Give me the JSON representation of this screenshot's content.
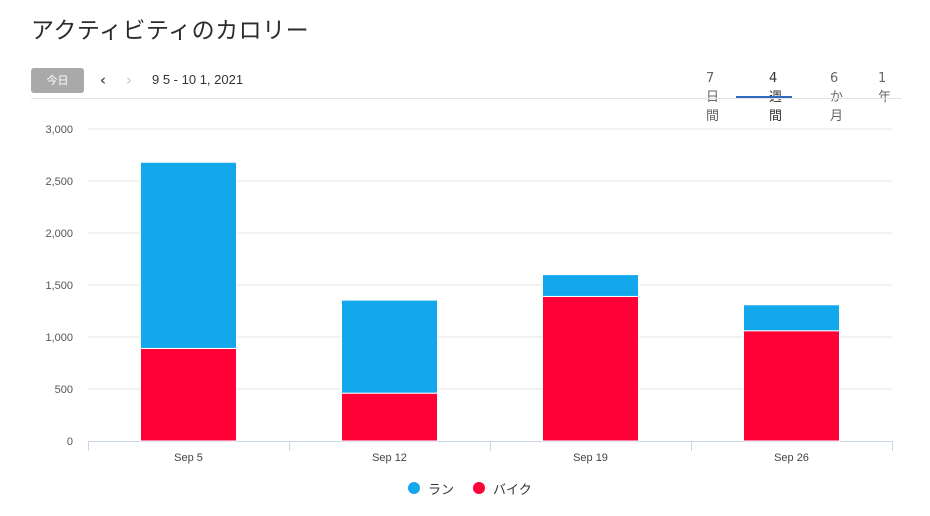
{
  "title": "アクティビティのカロリー",
  "toolbar": {
    "today_label": "今日",
    "prev_icon": "‹",
    "next_icon": "›",
    "date_range": "9 5 - 10 1, 2021",
    "tabs": [
      {
        "label": "7日間",
        "active": false
      },
      {
        "label": "4週間",
        "active": true
      },
      {
        "label": "6か月",
        "active": false
      },
      {
        "label": "1年",
        "active": false
      }
    ]
  },
  "colors": {
    "run": "#13a8ec",
    "bike": "#ff0037",
    "accent": "#2d6bbf"
  },
  "chart_data": {
    "type": "bar",
    "stacked": true,
    "categories": [
      "Sep 5",
      "Sep 12",
      "Sep 19",
      "Sep 26"
    ],
    "series": [
      {
        "name": "バイク",
        "values": [
          890,
          460,
          1390,
          1060
        ]
      },
      {
        "name": "ラン",
        "values": [
          1790,
          895,
          210,
          250
        ]
      }
    ],
    "ylim": [
      0,
      3000
    ],
    "yticks": [
      0,
      500,
      1000,
      1500,
      2000,
      2500,
      3000
    ],
    "ytick_labels": [
      "0",
      "500",
      "1,000",
      "1,500",
      "2,000",
      "2,500",
      "3,000"
    ],
    "grid": true,
    "legend_position": "bottom-center",
    "legend": [
      "ラン",
      "バイク"
    ]
  }
}
